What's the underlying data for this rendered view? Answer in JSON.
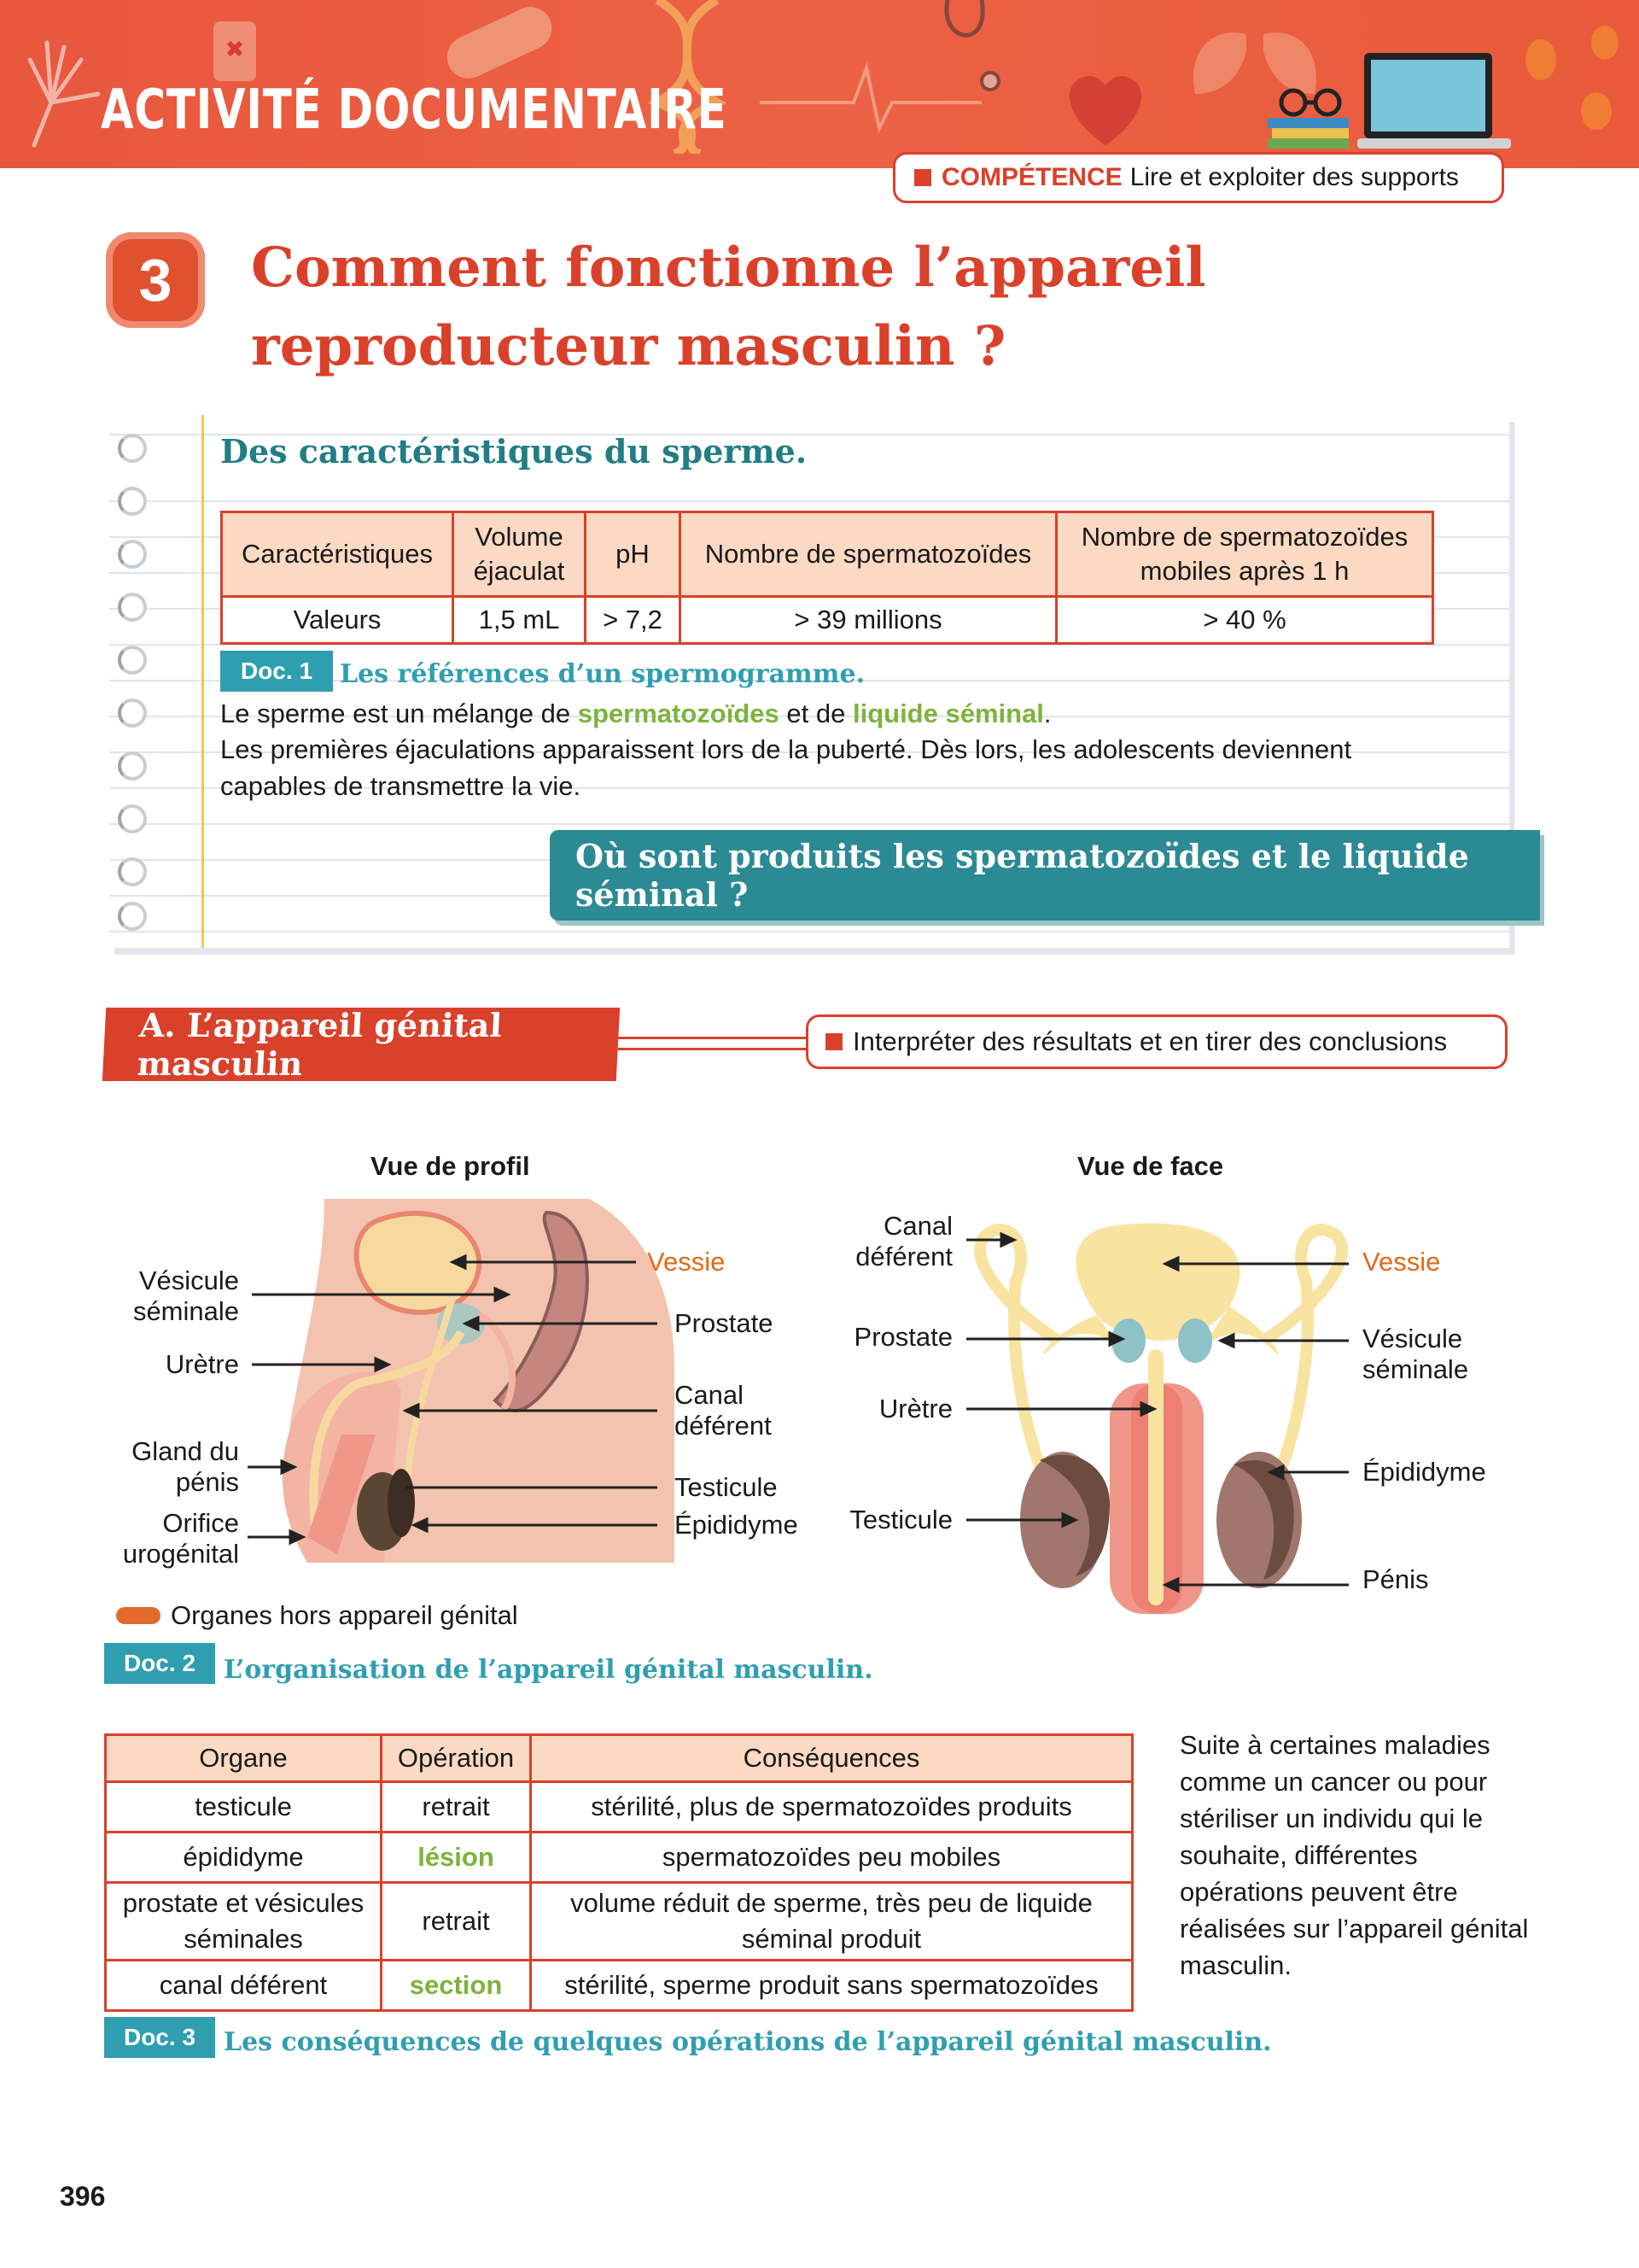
{
  "header": {
    "banner_title": "ACTIVITÉ DOCUMENTAIRE",
    "competence_key": "COMPÉTENCE",
    "competence_text": "Lire et exploiter des supports"
  },
  "title": {
    "number": "3",
    "text": "Comment fonctionne l’appareil reproducteur masculin ?"
  },
  "doc1": {
    "heading": "Des caractéristiques du sperme.",
    "table_headers": [
      "Caractéristiques",
      "Volume éjaculat",
      "pH",
      "Nombre de spermatozoïdes",
      "Nombre de spermatozoïdes mobiles après 1 h"
    ],
    "table_values": [
      "Valeurs",
      "1,5 mL",
      "> 7,2",
      "> 39 millions",
      "> 40 %"
    ],
    "tag": "Doc. 1",
    "caption": "Les références d’un spermogramme.",
    "para1_a": "Le sperme est un mélange de ",
    "para1_b": "spermatozoïdes",
    "para1_c": " et de ",
    "para1_d": "liquide séminal",
    "para1_e": ".",
    "para2": "Les premières éjaculations apparaissent lors de la puberté. Dès lors, les adolescents deviennent capables de transmettre la vie.",
    "question": "Où sont produits les spermatozoïdes et le liquide séminal ?"
  },
  "sectionA": {
    "title": "A. L’appareil génital masculin",
    "skill": "Interpréter des résultats et en tirer des conclusions"
  },
  "doc2": {
    "profile_title": "Vue de profil",
    "face_title": "Vue de face",
    "profile_labels_left": [
      "Vésicule séminale",
      "Urètre",
      "Gland du pénis",
      "Orifice urogénital"
    ],
    "profile_labels_right": [
      "Vessie",
      "Prostate",
      "Canal déférent",
      "Testicule",
      "Épididyme"
    ],
    "face_labels_left": [
      "Canal déférent",
      "Prostate",
      "Urètre",
      "Testicule"
    ],
    "face_labels_right": [
      "Vessie",
      "Vésicule séminale",
      "Épididyme",
      "Pénis"
    ],
    "legend": "Organes hors appareil génital",
    "tag": "Doc. 2",
    "caption": "L’organisation de l’appareil génital masculin."
  },
  "doc3": {
    "headers": [
      "Organe",
      "Opération",
      "Conséquences"
    ],
    "rows": [
      [
        "testicule",
        "retrait",
        "stérilité, plus de spermatozoïdes produits"
      ],
      [
        "épididyme",
        "lésion",
        "spermatozoïdes peu mobiles"
      ],
      [
        "prostate et vésicules séminales",
        "retrait",
        "volume réduit de sperme, très peu de liquide séminal produit"
      ],
      [
        "canal déférent",
        "section",
        "stérilité, sperme produit sans spermatozoïdes"
      ]
    ],
    "tag": "Doc. 3",
    "caption": "Les conséquences de quelques opérations de l’appareil génital masculin.",
    "side_text": "Suite à certaines maladies comme un cancer ou pour stériliser un individu qui le souhaite, différentes opérations peuvent être réalisées sur l’appareil génital masculin."
  },
  "page_number": "396",
  "colors": {
    "accent_red": "#d9412b",
    "teal": "#2f9fb0",
    "green": "#7db33d",
    "orange": "#e06a1a"
  }
}
